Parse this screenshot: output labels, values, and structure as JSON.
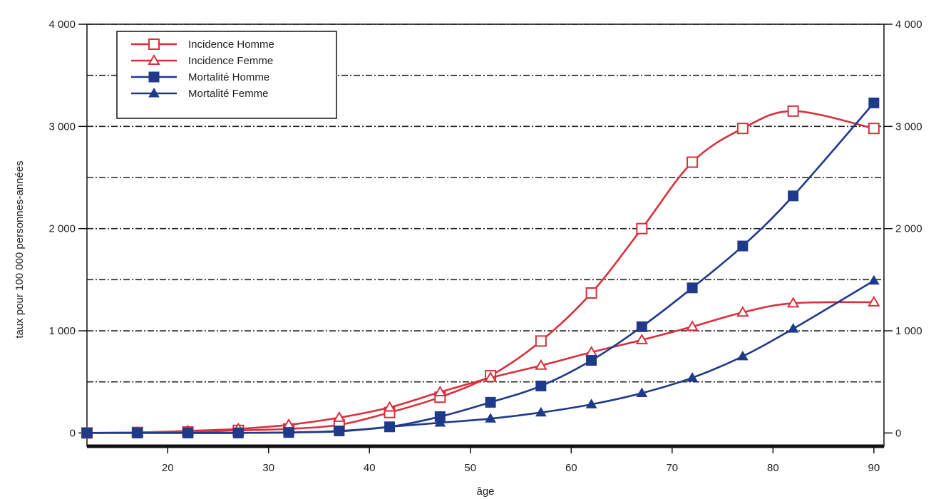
{
  "chart_data": {
    "type": "line",
    "title": "",
    "xlabel": "âge",
    "ylabel": "taux pour 100 000 personnes-années",
    "xlim": [
      12,
      91
    ],
    "ylim": [
      -130,
      4000
    ],
    "x_ticks": [
      20,
      30,
      40,
      50,
      60,
      70,
      80,
      90
    ],
    "x_tick_labels": [
      "20",
      "30",
      "40",
      "50",
      "60",
      "70",
      "80",
      "90"
    ],
    "y_ticks": [
      0,
      1000,
      2000,
      3000,
      4000
    ],
    "y_tick_labels": [
      "0",
      "1 000",
      "2 000",
      "3 000",
      "4 000"
    ],
    "grid_y": [
      500,
      1000,
      1500,
      2000,
      2500,
      3000,
      3500,
      4000
    ],
    "grid": true,
    "legend_position": "top-left",
    "series": [
      {
        "name": "Incidence Homme",
        "color": "#d8303c",
        "marker": "open-square",
        "x": [
          12,
          17,
          22,
          27,
          32,
          37,
          42,
          47,
          52,
          57,
          62,
          67,
          72,
          77,
          82,
          90
        ],
        "y": [
          0,
          5,
          10,
          25,
          40,
          80,
          200,
          350,
          560,
          900,
          1370,
          2000,
          2650,
          2980,
          3150,
          2980
        ]
      },
      {
        "name": "Incidence Femme",
        "color": "#d8303c",
        "marker": "open-triangle",
        "x": [
          12,
          17,
          22,
          27,
          32,
          37,
          42,
          47,
          52,
          57,
          62,
          67,
          72,
          77,
          82,
          90
        ],
        "y": [
          0,
          5,
          20,
          40,
          80,
          150,
          250,
          400,
          540,
          660,
          790,
          910,
          1040,
          1180,
          1270,
          1280
        ]
      },
      {
        "name": "Mortalité Homme",
        "color": "#1f3a8a",
        "marker": "filled-square",
        "x": [
          12,
          17,
          22,
          27,
          32,
          37,
          42,
          47,
          52,
          57,
          62,
          67,
          72,
          77,
          82,
          90
        ],
        "y": [
          0,
          0,
          0,
          0,
          5,
          20,
          60,
          160,
          300,
          460,
          710,
          1040,
          1420,
          1830,
          2320,
          3230
        ]
      },
      {
        "name": "Mortalité Femme",
        "color": "#1f3a8a",
        "marker": "filled-triangle",
        "x": [
          12,
          17,
          22,
          27,
          32,
          37,
          42,
          47,
          52,
          57,
          62,
          67,
          72,
          77,
          82,
          90
        ],
        "y": [
          0,
          0,
          0,
          0,
          5,
          15,
          60,
          100,
          140,
          200,
          280,
          390,
          540,
          750,
          1020,
          1490
        ]
      }
    ]
  }
}
